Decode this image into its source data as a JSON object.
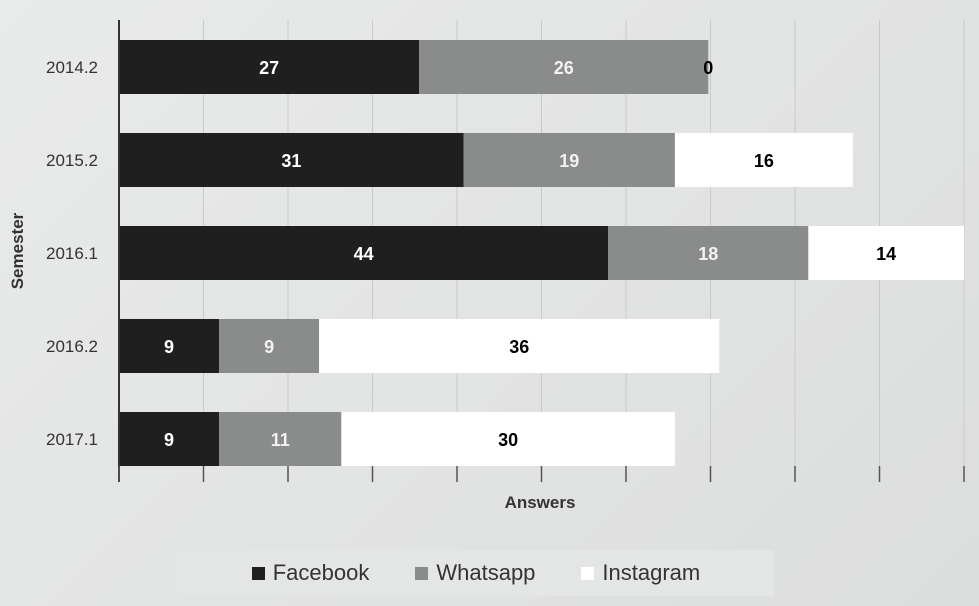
{
  "chart_data": {
    "type": "bar",
    "orientation": "horizontal",
    "stacked": true,
    "categories": [
      "2014.2",
      "2015.2",
      "2016.1",
      "2016.2",
      "2017.1"
    ],
    "series": [
      {
        "name": "Facebook",
        "values": [
          27,
          31,
          44,
          9,
          9
        ],
        "color": "#1f1f1f",
        "label_color": "#ffffff"
      },
      {
        "name": "Whatsapp",
        "values": [
          26,
          19,
          18,
          9,
          11
        ],
        "color": "#8a8b8b",
        "label_color": "#f2f2f2"
      },
      {
        "name": "Instagram",
        "values": [
          0,
          16,
          14,
          36,
          30
        ],
        "color": "#ffffff",
        "label_color": "#000000"
      }
    ],
    "xlabel": "Answers",
    "ylabel": "Semester",
    "grid": true,
    "legend_position": "bottom"
  }
}
